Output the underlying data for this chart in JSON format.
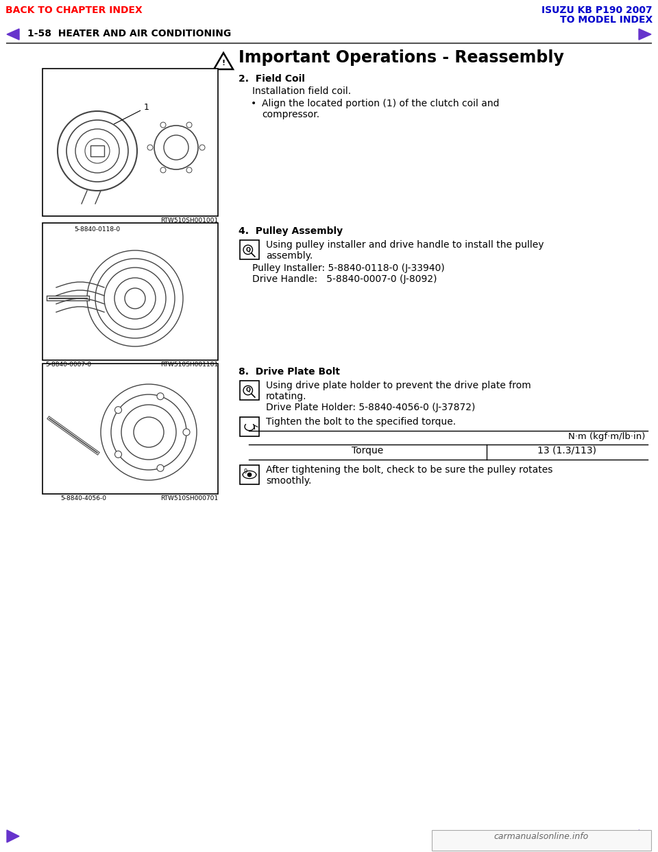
{
  "page_title_left": "BACK TO CHAPTER INDEX",
  "page_title_right_line1": "ISUZU KB P190 2007",
  "page_title_right_line2": "TO MODEL INDEX",
  "section_header": "1-58  HEATER AND AIR CONDITIONING",
  "main_title": "Important Operations - Reassembly",
  "header_left_color": "#FF0000",
  "header_right_color": "#0000CC",
  "section_header_color": "#000000",
  "nav_arrow_color": "#6633CC",
  "bg_color": "#FFFFFF",
  "item2_title": "2.  Field Coil",
  "item2_text1": "Installation field coil.",
  "item2_bullet1": "Align the located portion (1) of the clutch coil and",
  "item2_bullet2": "compressor.",
  "item4_title": "4.  Pulley Assembly",
  "item4_text1": "Using pulley installer and drive handle to install the pulley",
  "item4_text2": "assembly.",
  "item4_text3": "Pulley Installer: 5-8840-0118-0 (J-33940)",
  "item4_text4": "Drive Handle:   5-8840-0007-0 (J-8092)",
  "item8_title": "8.  Drive Plate Bolt",
  "item8_text1": "Using drive plate holder to prevent the drive plate from",
  "item8_text2": "rotating.",
  "item8_text3": "Drive Plate Holder: 5-8840-4056-0 (J-37872)",
  "item8_text4": "Tighten the bolt to the specified torque.",
  "table_header_right": "N·m (kgf·m/lb·in)",
  "table_row_label": "Torque",
  "table_row_value": "13 (1.3/113)",
  "item8_text5": "After tightening the bolt, check to be sure the pulley rotates",
  "item8_text6": "smoothly.",
  "img1_label": "RTW510SH001001",
  "img2_label_tl": "5-8840-0118-0",
  "img2_label_bl": "5-8840-0007-0",
  "img2_label_tr": "RTW510SH001101",
  "img3_label_b": "5-8840-4056-0",
  "img3_label_tr": "RTW510SH000701",
  "footer_text": "carmanualsonline.info"
}
